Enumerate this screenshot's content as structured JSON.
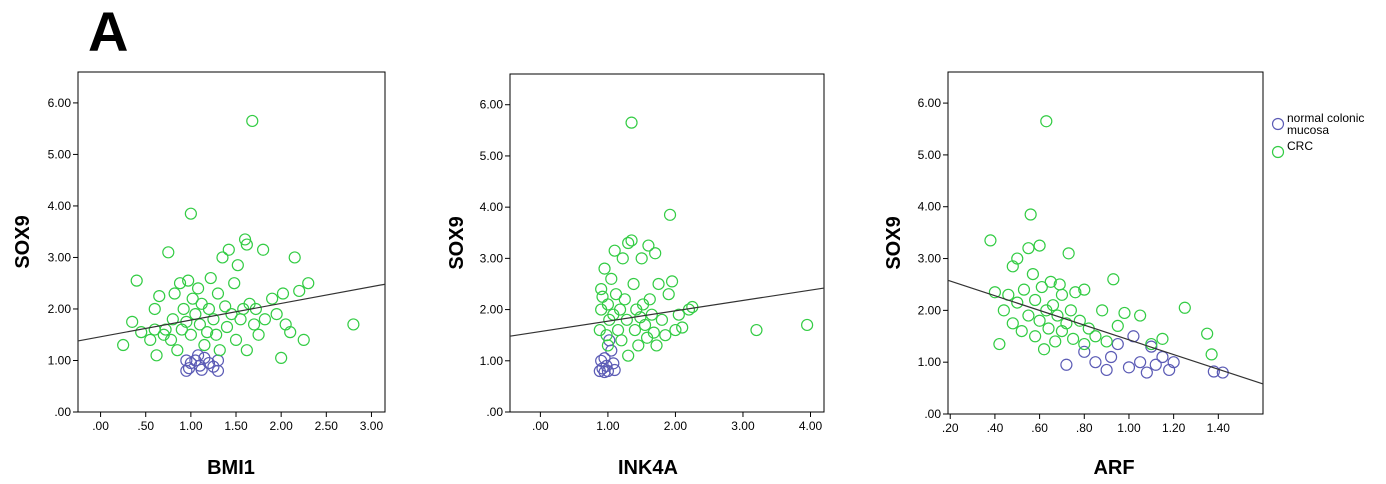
{
  "panel_label": "A",
  "colors": {
    "normal": "#5b5bb5",
    "crc": "#33cc44",
    "fit": "#333333"
  },
  "legend": [
    {
      "label_lines": [
        "normal colonic",
        "mucosa"
      ],
      "series": 0
    },
    {
      "label_lines": [
        "CRC"
      ],
      "series": 1
    }
  ],
  "chart_data": [
    {
      "type": "scatter",
      "xlabel": "BMI1",
      "ylabel": "SOX9",
      "xlim": [
        -0.25,
        3.15
      ],
      "ylim": [
        0,
        6.6
      ],
      "xticks": [
        0,
        0.5,
        1,
        1.5,
        2,
        2.5,
        3
      ],
      "xtick_labels": [
        ".00",
        ".50",
        "1.00",
        "1.50",
        "2.00",
        "2.50",
        "3.00"
      ],
      "yticks": [
        0,
        1,
        2,
        3,
        4,
        5,
        6
      ],
      "ytick_labels": [
        ".00",
        "1.00",
        "2.00",
        "3.00",
        "4.00",
        "5.00",
        "6.00"
      ],
      "fit_line": [
        [
          -0.25,
          1.38
        ],
        [
          3.15,
          2.48
        ]
      ],
      "series": [
        {
          "name": "normal colonic mucosa",
          "points": [
            [
              0.95,
              0.8
            ],
            [
              0.98,
              0.85
            ],
            [
              1.0,
              0.95
            ],
            [
              1.05,
              1.0
            ],
            [
              1.1,
              0.9
            ],
            [
              1.12,
              0.82
            ],
            [
              1.15,
              1.05
            ],
            [
              1.2,
              0.95
            ],
            [
              1.25,
              0.88
            ],
            [
              1.3,
              0.8
            ],
            [
              1.3,
              1.0
            ],
            [
              1.08,
              1.1
            ],
            [
              0.95,
              1.0
            ]
          ]
        },
        {
          "name": "CRC",
          "points": [
            [
              0.25,
              1.3
            ],
            [
              0.35,
              1.75
            ],
            [
              0.4,
              2.55
            ],
            [
              0.45,
              1.55
            ],
            [
              0.55,
              1.4
            ],
            [
              0.6,
              1.6
            ],
            [
              0.6,
              2.0
            ],
            [
              0.62,
              1.1
            ],
            [
              0.65,
              2.25
            ],
            [
              0.7,
              1.5
            ],
            [
              0.72,
              1.6
            ],
            [
              0.75,
              3.1
            ],
            [
              0.78,
              1.4
            ],
            [
              0.8,
              1.8
            ],
            [
              0.82,
              2.3
            ],
            [
              0.85,
              1.2
            ],
            [
              0.88,
              2.5
            ],
            [
              0.9,
              1.6
            ],
            [
              0.92,
              2.0
            ],
            [
              0.95,
              1.75
            ],
            [
              0.97,
              2.55
            ],
            [
              1.0,
              3.85
            ],
            [
              1.0,
              1.5
            ],
            [
              1.02,
              2.2
            ],
            [
              1.05,
              1.9
            ],
            [
              1.08,
              2.4
            ],
            [
              1.1,
              1.7
            ],
            [
              1.12,
              2.1
            ],
            [
              1.15,
              1.3
            ],
            [
              1.18,
              1.55
            ],
            [
              1.2,
              2.0
            ],
            [
              1.22,
              2.6
            ],
            [
              1.25,
              1.8
            ],
            [
              1.28,
              1.5
            ],
            [
              1.3,
              2.3
            ],
            [
              1.32,
              1.2
            ],
            [
              1.35,
              3.0
            ],
            [
              1.38,
              2.05
            ],
            [
              1.4,
              1.65
            ],
            [
              1.42,
              3.15
            ],
            [
              1.45,
              1.9
            ],
            [
              1.48,
              2.5
            ],
            [
              1.5,
              1.4
            ],
            [
              1.52,
              2.85
            ],
            [
              1.55,
              1.8
            ],
            [
              1.58,
              2.0
            ],
            [
              1.6,
              3.35
            ],
            [
              1.62,
              3.25
            ],
            [
              1.62,
              1.2
            ],
            [
              1.65,
              2.1
            ],
            [
              1.68,
              5.65
            ],
            [
              1.7,
              1.7
            ],
            [
              1.72,
              2.0
            ],
            [
              1.75,
              1.5
            ],
            [
              1.8,
              3.15
            ],
            [
              1.82,
              1.8
            ],
            [
              1.9,
              2.2
            ],
            [
              1.95,
              1.9
            ],
            [
              2.0,
              1.05
            ],
            [
              2.02,
              2.3
            ],
            [
              2.05,
              1.7
            ],
            [
              2.1,
              1.55
            ],
            [
              2.15,
              3.0
            ],
            [
              2.2,
              2.35
            ],
            [
              2.25,
              1.4
            ],
            [
              2.3,
              2.5
            ],
            [
              2.8,
              1.7
            ]
          ]
        }
      ]
    },
    {
      "type": "scatter",
      "xlabel": "INK4A",
      "ylabel": "SOX9",
      "xlim": [
        -0.45,
        4.2
      ],
      "ylim": [
        0,
        6.6
      ],
      "xticks": [
        0,
        1,
        2,
        3,
        4
      ],
      "xtick_labels": [
        ".00",
        "1.00",
        "2.00",
        "3.00",
        "4.00"
      ],
      "yticks": [
        0,
        1,
        2,
        3,
        4,
        5,
        6
      ],
      "ytick_labels": [
        ".00",
        "1.00",
        "2.00",
        "3.00",
        "4.00",
        "5.00",
        "6.00"
      ],
      "fit_line": [
        [
          -0.45,
          1.48
        ],
        [
          4.2,
          2.42
        ]
      ],
      "series": [
        {
          "name": "normal colonic mucosa",
          "points": [
            [
              0.88,
              0.8
            ],
            [
              0.9,
              1.0
            ],
            [
              0.92,
              0.85
            ],
            [
              0.95,
              1.05
            ],
            [
              0.98,
              0.9
            ],
            [
              1.0,
              0.8
            ],
            [
              1.02,
              1.4
            ],
            [
              1.05,
              1.2
            ],
            [
              1.08,
              0.95
            ],
            [
              1.1,
              0.82
            ],
            [
              0.95,
              0.78
            ]
          ]
        },
        {
          "name": "CRC",
          "points": [
            [
              0.88,
              1.6
            ],
            [
              0.9,
              2.0
            ],
            [
              0.9,
              2.4
            ],
            [
              0.92,
              2.25
            ],
            [
              0.95,
              2.8
            ],
            [
              0.98,
              1.5
            ],
            [
              1.0,
              2.1
            ],
            [
              1.0,
              1.3
            ],
            [
              1.02,
              1.8
            ],
            [
              1.05,
              2.6
            ],
            [
              1.08,
              1.9
            ],
            [
              1.1,
              3.15
            ],
            [
              1.12,
              2.3
            ],
            [
              1.15,
              1.6
            ],
            [
              1.18,
              2.0
            ],
            [
              1.2,
              1.4
            ],
            [
              1.22,
              3.0
            ],
            [
              1.25,
              2.2
            ],
            [
              1.28,
              1.8
            ],
            [
              1.3,
              1.1
            ],
            [
              1.3,
              3.3
            ],
            [
              1.35,
              3.35
            ],
            [
              1.35,
              5.65
            ],
            [
              1.38,
              2.5
            ],
            [
              1.4,
              1.6
            ],
            [
              1.42,
              2.0
            ],
            [
              1.45,
              1.3
            ],
            [
              1.48,
              1.85
            ],
            [
              1.5,
              3.0
            ],
            [
              1.52,
              2.1
            ],
            [
              1.55,
              1.7
            ],
            [
              1.58,
              1.45
            ],
            [
              1.6,
              3.25
            ],
            [
              1.62,
              2.2
            ],
            [
              1.65,
              1.9
            ],
            [
              1.68,
              1.55
            ],
            [
              1.7,
              3.1
            ],
            [
              1.72,
              1.3
            ],
            [
              1.75,
              2.5
            ],
            [
              1.8,
              1.8
            ],
            [
              1.85,
              1.5
            ],
            [
              1.9,
              2.3
            ],
            [
              1.92,
              3.85
            ],
            [
              1.95,
              2.55
            ],
            [
              2.0,
              1.6
            ],
            [
              2.05,
              1.9
            ],
            [
              2.1,
              1.65
            ],
            [
              2.2,
              2.0
            ],
            [
              2.25,
              2.05
            ],
            [
              3.2,
              1.6
            ],
            [
              3.95,
              1.7
            ]
          ]
        }
      ]
    },
    {
      "type": "scatter",
      "xlabel": "ARF",
      "ylabel": "SOX9",
      "xlim": [
        0.19,
        1.6
      ],
      "ylim": [
        0,
        6.6
      ],
      "xticks": [
        0.2,
        0.4,
        0.6,
        0.8,
        1.0,
        1.2,
        1.4
      ],
      "xtick_labels": [
        ".20",
        ".40",
        ".60",
        ".80",
        "1.00",
        "1.20",
        "1.40"
      ],
      "yticks": [
        0,
        1,
        2,
        3,
        4,
        5,
        6
      ],
      "ytick_labels": [
        ".00",
        "1.00",
        "2.00",
        "3.00",
        "4.00",
        "5.00",
        "6.00"
      ],
      "fit_line": [
        [
          0.19,
          2.58
        ],
        [
          1.6,
          0.58
        ]
      ],
      "series": [
        {
          "name": "normal colonic mucosa",
          "points": [
            [
              0.72,
              0.95
            ],
            [
              0.8,
              1.2
            ],
            [
              0.85,
              1.0
            ],
            [
              0.9,
              0.85
            ],
            [
              0.92,
              1.1
            ],
            [
              0.95,
              1.35
            ],
            [
              1.0,
              0.9
            ],
            [
              1.02,
              1.5
            ],
            [
              1.05,
              1.0
            ],
            [
              1.08,
              0.8
            ],
            [
              1.1,
              1.3
            ],
            [
              1.12,
              0.95
            ],
            [
              1.15,
              1.1
            ],
            [
              1.18,
              0.85
            ],
            [
              1.2,
              1.0
            ],
            [
              1.38,
              0.82
            ],
            [
              1.42,
              0.8
            ]
          ]
        },
        {
          "name": "CRC",
          "points": [
            [
              0.38,
              3.35
            ],
            [
              0.4,
              2.35
            ],
            [
              0.42,
              1.35
            ],
            [
              0.44,
              2.0
            ],
            [
              0.46,
              2.3
            ],
            [
              0.48,
              2.85
            ],
            [
              0.48,
              1.75
            ],
            [
              0.5,
              2.15
            ],
            [
              0.5,
              3.0
            ],
            [
              0.52,
              1.6
            ],
            [
              0.53,
              2.4
            ],
            [
              0.55,
              3.2
            ],
            [
              0.55,
              1.9
            ],
            [
              0.56,
              3.85
            ],
            [
              0.57,
              2.7
            ],
            [
              0.58,
              1.5
            ],
            [
              0.58,
              2.2
            ],
            [
              0.6,
              1.8
            ],
            [
              0.6,
              3.25
            ],
            [
              0.61,
              2.45
            ],
            [
              0.62,
              1.25
            ],
            [
              0.63,
              5.65
            ],
            [
              0.63,
              2.0
            ],
            [
              0.64,
              1.65
            ],
            [
              0.65,
              2.55
            ],
            [
              0.66,
              2.1
            ],
            [
              0.67,
              1.4
            ],
            [
              0.68,
              1.9
            ],
            [
              0.69,
              2.5
            ],
            [
              0.7,
              1.6
            ],
            [
              0.7,
              2.3
            ],
            [
              0.72,
              1.75
            ],
            [
              0.73,
              3.1
            ],
            [
              0.74,
              2.0
            ],
            [
              0.75,
              1.45
            ],
            [
              0.76,
              2.35
            ],
            [
              0.78,
              1.8
            ],
            [
              0.8,
              1.35
            ],
            [
              0.8,
              2.4
            ],
            [
              0.82,
              1.65
            ],
            [
              0.85,
              1.5
            ],
            [
              0.88,
              2.0
            ],
            [
              0.9,
              1.4
            ],
            [
              0.93,
              2.6
            ],
            [
              0.95,
              1.7
            ],
            [
              0.98,
              1.95
            ],
            [
              1.05,
              1.9
            ],
            [
              1.1,
              1.35
            ],
            [
              1.15,
              1.45
            ],
            [
              1.25,
              2.05
            ],
            [
              1.35,
              1.55
            ],
            [
              1.37,
              1.15
            ]
          ]
        }
      ]
    }
  ]
}
